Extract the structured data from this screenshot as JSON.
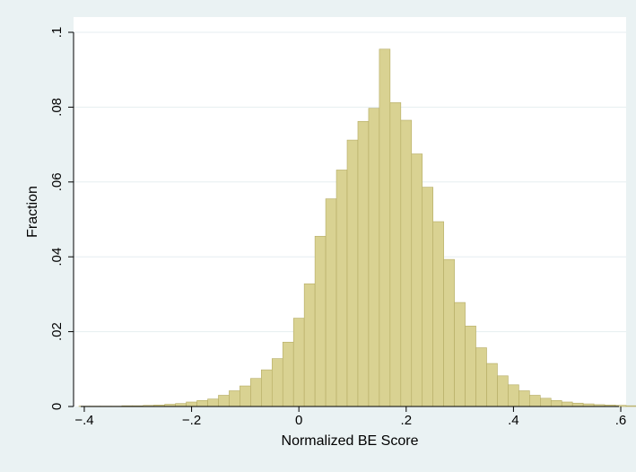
{
  "chart_data": {
    "type": "bar",
    "title": "",
    "xlabel": "Normalized BE Score",
    "ylabel": "Fraction",
    "xlim": [
      -0.42,
      0.61
    ],
    "ylim": [
      0,
      0.1
    ],
    "xticks": [
      -0.4,
      -0.2,
      0,
      0.2,
      0.4,
      0.6
    ],
    "xtick_labels": [
      "−.4",
      "−.2",
      "0",
      ".2",
      ".4",
      ".6"
    ],
    "yticks": [
      0,
      0.02,
      0.04,
      0.06,
      0.08,
      0.1
    ],
    "ytick_labels": [
      "0",
      ".02",
      ".04",
      ".06",
      ".08",
      ".1"
    ],
    "grid": true,
    "bin_width": 0.02,
    "bin_start": -0.41,
    "values": [
      0.0001,
      0.0001,
      0.0001,
      0.0001,
      0.0002,
      0.0002,
      0.0003,
      0.0004,
      0.0006,
      0.0008,
      0.0012,
      0.0016,
      0.002,
      0.003,
      0.0042,
      0.0055,
      0.0075,
      0.0098,
      0.0128,
      0.0172,
      0.0236,
      0.0328,
      0.0455,
      0.0555,
      0.0632,
      0.0712,
      0.0762,
      0.0797,
      0.0955,
      0.0812,
      0.0765,
      0.0675,
      0.0586,
      0.0494,
      0.0393,
      0.0278,
      0.0215,
      0.0157,
      0.0115,
      0.0082,
      0.0058,
      0.0042,
      0.003,
      0.0022,
      0.0016,
      0.0012,
      0.0009,
      0.0007,
      0.0005,
      0.0004,
      0.0003,
      0.0002,
      0.0002,
      0.0001,
      0.0001,
      0.0001,
      0.0001,
      0.0001,
      0.0001,
      0.0001,
      0.0001,
      0.0001,
      0.0001,
      0.0001,
      0.0001,
      0.0001,
      0.0001,
      0.0001
    ],
    "colors": {
      "bar_fill": "#d9d292",
      "bar_stroke": "#b4ab63",
      "plot_bg": "#ffffff",
      "outer_bg": "#eaf2f3",
      "grid": "#e6eef0"
    }
  }
}
